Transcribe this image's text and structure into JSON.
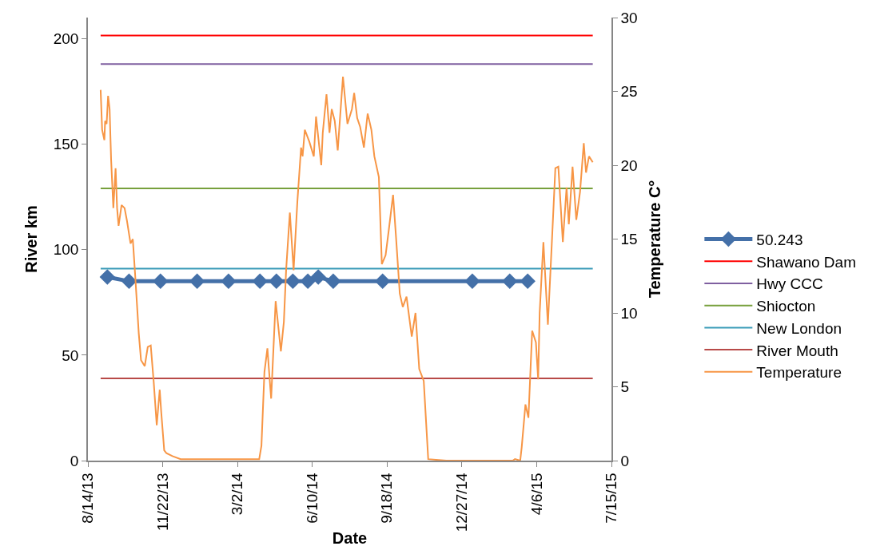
{
  "chart_data": {
    "type": "line",
    "xlabel": "Date",
    "ylabel": "River km",
    "y2label": "Temperature C°",
    "xlim": [
      "2013-08-14",
      "2015-07-15"
    ],
    "xticks": [
      {
        "value": "2013-08-14",
        "label": "8/14/13"
      },
      {
        "value": "2013-11-22",
        "label": "11/22/13"
      },
      {
        "value": "2014-03-02",
        "label": "3/2/14"
      },
      {
        "value": "2014-06-10",
        "label": "6/10/14"
      },
      {
        "value": "2014-09-18",
        "label": "9/18/14"
      },
      {
        "value": "2014-12-27",
        "label": "12/27/14"
      },
      {
        "value": "2015-04-06",
        "label": "4/6/15"
      },
      {
        "value": "2015-07-15",
        "label": "7/15/15"
      }
    ],
    "ylim": [
      0,
      210
    ],
    "yticks": [
      0,
      50,
      100,
      150,
      200
    ],
    "y2lim": [
      0,
      30
    ],
    "y2ticks": [
      0,
      5,
      10,
      15,
      20,
      25,
      30
    ],
    "legend": "right",
    "line_style": "solid",
    "series": [
      {
        "name": "50.243",
        "color": "#4470a8",
        "marker": "diamond",
        "x": [
          "2013-09-09",
          "2013-10-08",
          "2013-11-19",
          "2014-01-07",
          "2014-02-18",
          "2014-04-01",
          "2014-04-23",
          "2014-05-15",
          "2014-06-04",
          "2014-06-18",
          "2014-07-08",
          "2014-09-12",
          "2015-01-10",
          "2015-03-01",
          "2015-03-25"
        ],
        "values": [
          87,
          85,
          85,
          85,
          85,
          85,
          85,
          85,
          85,
          87,
          85,
          85,
          85,
          85,
          85
        ]
      },
      {
        "name": "Shawano Dam",
        "color": "#ff0000",
        "marker": "none",
        "x": [
          "2013-08-31",
          "2015-06-20"
        ],
        "values": [
          201.5,
          201.5
        ]
      },
      {
        "name": "Hwy CCC",
        "color": "#7f5fa0",
        "marker": "none",
        "x": [
          "2013-08-31",
          "2015-06-20"
        ],
        "values": [
          188,
          188
        ]
      },
      {
        "name": "Shiocton",
        "color": "#77a03c",
        "marker": "none",
        "x": [
          "2013-08-31",
          "2015-06-20"
        ],
        "values": [
          129,
          129
        ]
      },
      {
        "name": "New London",
        "color": "#3a9bb8",
        "marker": "none",
        "x": [
          "2013-08-31",
          "2015-06-20"
        ],
        "values": [
          91,
          91
        ]
      },
      {
        "name": "River Mouth",
        "color": "#b84a48",
        "marker": "none",
        "x": [
          "2013-08-31",
          "2015-06-20"
        ],
        "values": [
          39,
          39
        ]
      },
      {
        "name": "Temperature",
        "color": "#f79646",
        "marker": "none",
        "axis": "y2",
        "x": [
          "2013-08-31",
          "2013-09-02",
          "2013-09-05",
          "2013-09-06",
          "2013-09-08",
          "2013-09-10",
          "2013-09-12",
          "2013-09-14",
          "2013-09-17",
          "2013-09-20",
          "2013-09-22",
          "2013-09-24",
          "2013-09-28",
          "2013-10-02",
          "2013-10-05",
          "2013-10-10",
          "2013-10-13",
          "2013-10-16",
          "2013-10-21",
          "2013-10-24",
          "2013-10-29",
          "2013-11-02",
          "2013-11-06",
          "2013-11-10",
          "2013-11-14",
          "2013-11-18",
          "2013-11-20",
          "2013-11-24",
          "2013-11-27",
          "2013-12-05",
          "2013-12-16",
          "2014-01-19",
          "2014-03-31",
          "2014-04-03",
          "2014-04-07",
          "2014-04-11",
          "2014-04-13",
          "2014-04-16",
          "2014-04-20",
          "2014-04-22",
          "2014-04-29",
          "2014-05-03",
          "2014-05-06",
          "2014-05-11",
          "2014-05-16",
          "2014-05-21",
          "2014-05-26",
          "2014-05-28",
          "2014-05-31",
          "2014-06-06",
          "2014-06-12",
          "2014-06-15",
          "2014-06-22",
          "2014-06-24",
          "2014-06-29",
          "2014-07-03",
          "2014-07-06",
          "2014-07-10",
          "2014-07-14",
          "2014-07-21",
          "2014-07-27",
          "2014-08-02",
          "2014-08-05",
          "2014-08-09",
          "2014-08-13",
          "2014-08-18",
          "2014-08-23",
          "2014-08-28",
          "2014-09-01",
          "2014-09-07",
          "2014-09-11",
          "2014-09-16",
          "2014-09-20",
          "2014-09-26",
          "2014-09-30",
          "2014-10-05",
          "2014-10-09",
          "2014-10-14",
          "2014-10-21",
          "2014-10-26",
          "2014-10-31",
          "2014-11-06",
          "2014-11-12",
          "2014-12-06",
          "2015-02-02",
          "2015-03-05",
          "2015-03-08",
          "2015-03-15",
          "2015-03-17",
          "2015-03-22",
          "2015-03-26",
          "2015-03-31",
          "2015-04-05",
          "2015-04-08",
          "2015-04-10",
          "2015-04-15",
          "2015-04-21",
          "2015-04-27",
          "2015-05-01",
          "2015-05-05",
          "2015-05-11",
          "2015-05-16",
          "2015-05-19",
          "2015-05-24",
          "2015-05-29",
          "2015-06-03",
          "2015-06-08",
          "2015-06-11",
          "2015-06-15",
          "2015-06-20"
        ],
        "values": [
          25.1,
          22.4,
          21.7,
          23.0,
          22.8,
          24.7,
          23.8,
          20.4,
          17.1,
          19.8,
          17.1,
          15.9,
          17.3,
          17.1,
          16.3,
          14.7,
          15.0,
          12.7,
          8.6,
          6.8,
          6.4,
          7.7,
          7.8,
          5.3,
          2.4,
          4.8,
          3.3,
          0.7,
          0.5,
          0.3,
          0.1,
          0.1,
          0.1,
          1.0,
          6.0,
          7.6,
          6.2,
          4.2,
          8.6,
          10.8,
          7.4,
          9.4,
          12.9,
          16.8,
          12.9,
          17.5,
          21.2,
          20.6,
          22.4,
          21.6,
          20.6,
          23.3,
          20.0,
          22.2,
          24.8,
          22.2,
          23.8,
          23.0,
          21.0,
          26.0,
          22.8,
          23.8,
          24.9,
          23.2,
          22.6,
          21.2,
          23.5,
          22.4,
          20.6,
          19.2,
          13.3,
          13.9,
          15.5,
          18.0,
          15.1,
          11.3,
          10.4,
          11.1,
          8.4,
          10.0,
          6.2,
          5.4,
          0.1,
          0.0,
          0.0,
          0.0,
          0.1,
          0.0,
          0.9,
          3.8,
          2.9,
          8.8,
          8.0,
          5.5,
          10.0,
          14.8,
          9.2,
          15.5,
          19.8,
          19.9,
          14.8,
          18.5,
          16.0,
          19.9,
          16.3,
          18.2,
          21.5,
          19.5,
          20.6,
          20.2
        ]
      }
    ]
  }
}
